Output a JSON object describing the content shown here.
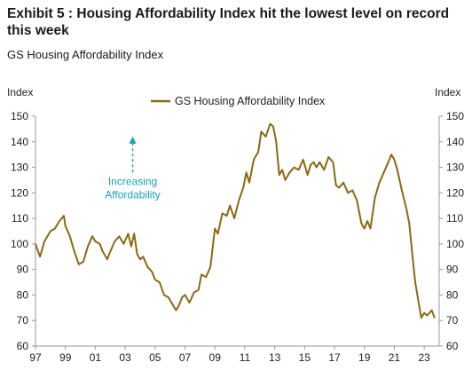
{
  "header": {
    "title": "Exhibit 5 : Housing Affordability Index hit the lowest level on record this week",
    "subtitle": "GS Housing Affordability Index"
  },
  "colors": {
    "series": "#8b6914",
    "annotation": "#17a2b8",
    "axis": "#999999"
  },
  "chart_data": {
    "type": "line",
    "yaxis_left_title": "Index",
    "yaxis_right_title": "Index",
    "ylim": [
      60,
      150
    ],
    "yticks": [
      60,
      70,
      80,
      90,
      100,
      110,
      120,
      130,
      140,
      150
    ],
    "xlim": [
      1997,
      2024
    ],
    "xticks": [
      {
        "value": 1997,
        "label": "97"
      },
      {
        "value": 1999,
        "label": "99"
      },
      {
        "value": 2001,
        "label": "01"
      },
      {
        "value": 2003,
        "label": "03"
      },
      {
        "value": 2005,
        "label": "05"
      },
      {
        "value": 2007,
        "label": "07"
      },
      {
        "value": 2009,
        "label": "09"
      },
      {
        "value": 2011,
        "label": "11"
      },
      {
        "value": 2013,
        "label": "13"
      },
      {
        "value": 2015,
        "label": "15"
      },
      {
        "value": 2017,
        "label": "17"
      },
      {
        "value": 2019,
        "label": "19"
      },
      {
        "value": 2021,
        "label": "21"
      },
      {
        "value": 2023,
        "label": "23"
      }
    ],
    "legend": "top-center",
    "grid": false,
    "annotation": {
      "text_line1": "Increasing",
      "text_line2": "Affordability",
      "arrow": "up",
      "x": 2003.5,
      "y_start": 128,
      "y_end": 141
    },
    "series": [
      {
        "name": "GS Housing Affordability Index",
        "x": [
          1997.0,
          1997.3,
          1997.6,
          1998.0,
          1998.3,
          1998.6,
          1998.9,
          1999.0,
          1999.3,
          1999.6,
          1999.9,
          2000.2,
          2000.5,
          2000.8,
          2001.0,
          2001.3,
          2001.5,
          2001.8,
          2002.0,
          2002.3,
          2002.6,
          2002.9,
          2003.2,
          2003.4,
          2003.6,
          2003.8,
          2004.0,
          2004.2,
          2004.5,
          2004.8,
          2005.0,
          2005.3,
          2005.6,
          2005.9,
          2006.2,
          2006.4,
          2006.6,
          2006.8,
          2007.0,
          2007.3,
          2007.6,
          2007.9,
          2008.1,
          2008.4,
          2008.7,
          2009.0,
          2009.2,
          2009.5,
          2009.8,
          2010.0,
          2010.3,
          2010.6,
          2010.9,
          2011.1,
          2011.3,
          2011.6,
          2011.9,
          2012.1,
          2012.4,
          2012.7,
          2012.9,
          2013.1,
          2013.3,
          2013.5,
          2013.7,
          2014.0,
          2014.3,
          2014.6,
          2014.9,
          2015.2,
          2015.4,
          2015.6,
          2015.8,
          2016.0,
          2016.3,
          2016.6,
          2016.9,
          2017.1,
          2017.3,
          2017.6,
          2017.9,
          2018.2,
          2018.5,
          2018.8,
          2019.0,
          2019.2,
          2019.4,
          2019.7,
          2020.0,
          2020.3,
          2020.6,
          2020.8,
          2021.0,
          2021.2,
          2021.5,
          2021.8,
          2022.0,
          2022.2,
          2022.4,
          2022.6,
          2022.8,
          2023.0,
          2023.2,
          2023.5,
          2023.7
        ],
        "values": [
          100,
          95,
          101,
          105,
          106,
          109,
          111,
          107,
          103,
          97,
          92,
          93,
          99,
          103,
          101,
          100,
          97,
          94,
          97,
          101,
          103,
          100,
          104,
          99,
          104,
          96,
          94,
          95,
          91,
          89,
          86,
          85,
          80,
          79,
          76,
          74,
          76,
          79,
          80,
          77,
          81,
          82,
          88,
          87,
          91,
          106,
          104,
          112,
          111,
          115,
          110,
          117,
          122,
          128,
          124,
          133,
          136,
          144,
          142,
          147,
          146,
          140,
          127,
          129,
          125,
          128,
          130,
          129,
          133,
          127,
          131,
          132,
          130,
          132,
          129,
          134,
          132,
          123,
          122,
          124,
          120,
          121,
          117,
          108,
          106,
          109,
          106,
          118,
          124,
          128,
          132,
          135,
          133,
          129,
          121,
          114,
          108,
          96,
          85,
          78,
          71,
          73,
          72,
          74,
          71
        ]
      }
    ]
  }
}
